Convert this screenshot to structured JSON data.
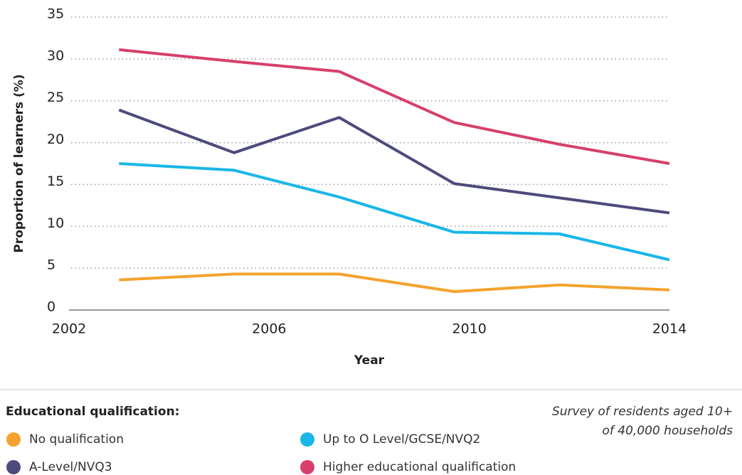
{
  "chart_data": {
    "type": "line",
    "x_label": "Year",
    "y_label": "Proportion of learners (%)",
    "xlim": [
      2002,
      2014
    ],
    "xticks": [
      2002,
      2006,
      2010,
      2014
    ],
    "ylim": [
      0,
      35
    ],
    "yticks": [
      0,
      5,
      10,
      15,
      20,
      25,
      30,
      35
    ],
    "grid": true,
    "legend_title": "Educational qualification:",
    "annotation": [
      "Survey of residents aged 10+",
      "of 40,000 households"
    ],
    "x": [
      2003.0,
      2005.3,
      2007.4,
      2009.7,
      2011.8,
      2014.0
    ],
    "series": [
      {
        "name": "No qualification",
        "color": "#f4a22d",
        "values": [
          3.6,
          4.3,
          4.3,
          2.2,
          3.0,
          2.4
        ]
      },
      {
        "name": "Up to O Level/GCSE/NVQ2",
        "color": "#19b6e8",
        "values": [
          17.5,
          16.7,
          13.5,
          9.3,
          9.1,
          6.0
        ]
      },
      {
        "name": "A-Level/NVQ3",
        "color": "#4d4a7c",
        "values": [
          23.9,
          18.8,
          23.0,
          15.1,
          13.4,
          11.6
        ]
      },
      {
        "name": "Higher educational qualification",
        "color": "#d6406b",
        "values": [
          31.1,
          29.7,
          28.5,
          22.4,
          19.8,
          17.5
        ]
      }
    ]
  }
}
